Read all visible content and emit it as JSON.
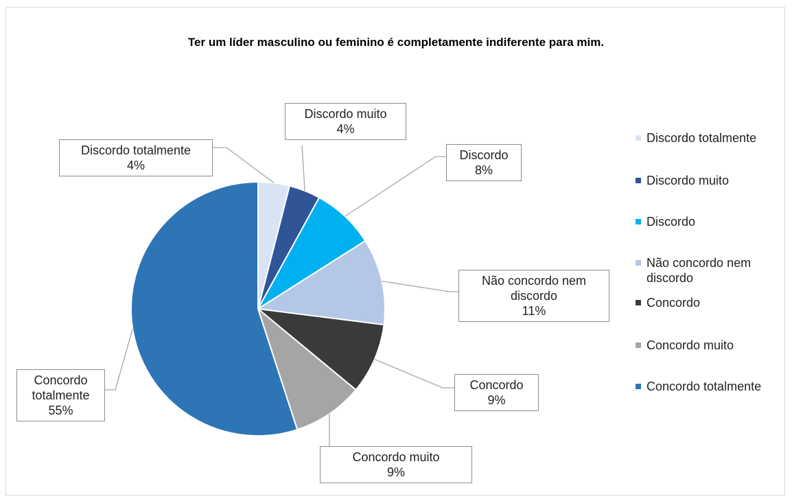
{
  "chart_data": {
    "type": "pie",
    "title": "Ter um líder masculino ou feminino é completamente indiferente para mim.",
    "categories": [
      "Discordo totalmente",
      "Discordo muito",
      "Discordo",
      "Não concordo nem discordo",
      "Concordo",
      "Concordo muito",
      "Concordo totalmente"
    ],
    "values": [
      4,
      4,
      8,
      11,
      9,
      9,
      55
    ],
    "value_labels": [
      "4%",
      "4%",
      "8%",
      "11%",
      "9%",
      "9%",
      "55%"
    ],
    "colors": [
      "#dae3f3",
      "#2f5597",
      "#00b0f0",
      "#b4c7e7",
      "#3a3a3a",
      "#a5a5a5",
      "#2e75b6"
    ],
    "legend": "right"
  }
}
